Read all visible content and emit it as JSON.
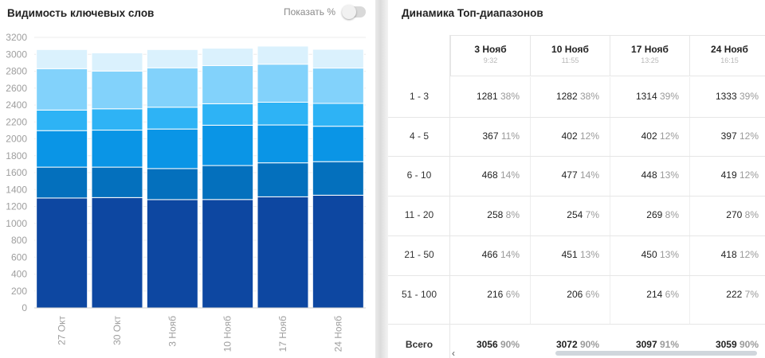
{
  "visibility": {
    "title": "Видимость ключевых слов",
    "toggle_label": "Показать %",
    "toggle_on": false
  },
  "chart_data": {
    "type": "bar",
    "stacked": true,
    "categories": [
      "27 Окт",
      "30 Окт",
      "3 Нояб",
      "10 Нояб",
      "17 Нояб",
      "24 Нояб"
    ],
    "ylim": [
      0,
      3200
    ],
    "yticks": [
      0,
      200,
      400,
      600,
      800,
      1000,
      1200,
      1400,
      1600,
      1800,
      2000,
      2200,
      2400,
      2600,
      2800,
      3000,
      3200
    ],
    "grid": true,
    "series": [
      {
        "color": "#0d47a1",
        "values": [
          1300,
          1305,
          1281,
          1282,
          1314,
          1333
        ]
      },
      {
        "color": "#0470bd",
        "values": [
          365,
          360,
          367,
          402,
          402,
          397
        ]
      },
      {
        "color": "#0a95e6",
        "values": [
          432,
          438,
          468,
          477,
          448,
          419
        ]
      },
      {
        "color": "#2eb3f5",
        "values": [
          243,
          252,
          258,
          254,
          269,
          270
        ]
      },
      {
        "color": "#82d2fb",
        "values": [
          490,
          447,
          466,
          451,
          450,
          418
        ]
      },
      {
        "color": "#daf1fd",
        "values": [
          226,
          215,
          216,
          206,
          214,
          222
        ]
      }
    ]
  },
  "dynamics": {
    "title": "Динамика Топ-диапазонов",
    "columns": [
      {
        "date": "3 Нояб",
        "time": "9:32"
      },
      {
        "date": "10 Нояб",
        "time": "11:55"
      },
      {
        "date": "17 Нояб",
        "time": "13:25"
      },
      {
        "date": "24 Нояб",
        "time": "16:15"
      }
    ],
    "rows": [
      {
        "label": "1 - 3",
        "cells": [
          {
            "v": "1281",
            "p": "38%"
          },
          {
            "v": "1282",
            "p": "38%"
          },
          {
            "v": "1314",
            "p": "39%"
          },
          {
            "v": "1333",
            "p": "39%"
          }
        ]
      },
      {
        "label": "4 - 5",
        "cells": [
          {
            "v": "367",
            "p": "11%"
          },
          {
            "v": "402",
            "p": "12%"
          },
          {
            "v": "402",
            "p": "12%"
          },
          {
            "v": "397",
            "p": "12%"
          }
        ]
      },
      {
        "label": "6 - 10",
        "cells": [
          {
            "v": "468",
            "p": "14%"
          },
          {
            "v": "477",
            "p": "14%"
          },
          {
            "v": "448",
            "p": "13%"
          },
          {
            "v": "419",
            "p": "12%"
          }
        ]
      },
      {
        "label": "11 - 20",
        "cells": [
          {
            "v": "258",
            "p": "8%"
          },
          {
            "v": "254",
            "p": "7%"
          },
          {
            "v": "269",
            "p": "8%"
          },
          {
            "v": "270",
            "p": "8%"
          }
        ]
      },
      {
        "label": "21 - 50",
        "cells": [
          {
            "v": "466",
            "p": "14%"
          },
          {
            "v": "451",
            "p": "13%"
          },
          {
            "v": "450",
            "p": "13%"
          },
          {
            "v": "418",
            "p": "12%"
          }
        ]
      },
      {
        "label": "51 - 100",
        "cells": [
          {
            "v": "216",
            "p": "6%"
          },
          {
            "v": "206",
            "p": "6%"
          },
          {
            "v": "214",
            "p": "6%"
          },
          {
            "v": "222",
            "p": "7%"
          }
        ]
      }
    ],
    "total": {
      "label": "Всего",
      "cells": [
        {
          "v": "3056",
          "p": "90%"
        },
        {
          "v": "3072",
          "p": "90%"
        },
        {
          "v": "3097",
          "p": "91%"
        },
        {
          "v": "3059",
          "p": "90%"
        }
      ]
    },
    "scroll_left_icon": "‹"
  }
}
